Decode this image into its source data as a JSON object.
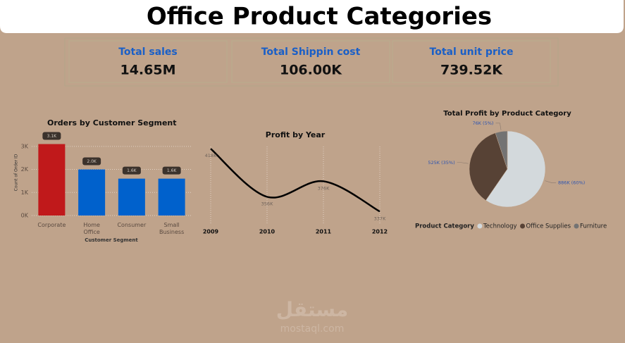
{
  "header": {
    "title": "Office Product Categories"
  },
  "cards": [
    {
      "label": "Total sales",
      "value": "14.65M"
    },
    {
      "label": "Total Shippin cost",
      "value": "106.00K"
    },
    {
      "label": "Total unit price",
      "value": "739.52K"
    }
  ],
  "watermark": {
    "arabic": "مستقل",
    "latin": "mostaql.com"
  },
  "chart_data": [
    {
      "type": "bar",
      "title": "Orders by Customer Segment",
      "categories": [
        "Corporate",
        "Home Office",
        "Consumer",
        "Small Business"
      ],
      "values": [
        3100,
        2000,
        1600,
        1600
      ],
      "value_labels": [
        "3.1K",
        "2.0K",
        "1.6K",
        "1.6K"
      ],
      "colors": [
        "#c0191b",
        "#0061cc",
        "#0061cc",
        "#0061cc"
      ],
      "x_label": "Customer Segment",
      "y_label": "Count of Order ID",
      "ylim": [
        0,
        3300
      ],
      "yticks": [
        {
          "value": 0,
          "label": "0K"
        },
        {
          "value": 1000,
          "label": "1K"
        },
        {
          "value": 2000,
          "label": "2K"
        },
        {
          "value": 3000,
          "label": "3K"
        }
      ],
      "grid": true
    },
    {
      "type": "line",
      "title": "Profit by Year",
      "categories": [
        "2009",
        "2010",
        "2011",
        "2012"
      ],
      "values": [
        418,
        356,
        376,
        337
      ],
      "value_labels": [
        "418K",
        "356K",
        "376K",
        "337K"
      ],
      "color": "#000000",
      "ylim": [
        320,
        420
      ],
      "grid": true
    },
    {
      "type": "pie",
      "title": "Total Profit by Product Category",
      "categories": [
        "Technology",
        "Office Supplies",
        "Furniture"
      ],
      "values": [
        886,
        525,
        76
      ],
      "value_labels": [
        "886K (60%)",
        "525K (35%)",
        "76K (5%)"
      ],
      "colors": [
        "#d3d9dc",
        "#574235",
        "#737373"
      ],
      "legend_title": "Product Category",
      "legend": "bottom"
    }
  ]
}
